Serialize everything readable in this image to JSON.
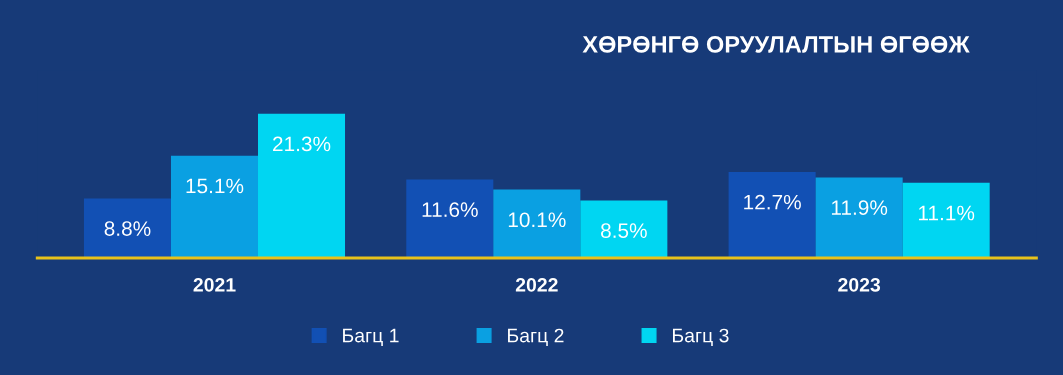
{
  "chart_data": {
    "type": "bar",
    "title": "ХӨРӨНГӨ ОРУУЛАЛТЫН ӨГӨӨЖ",
    "categories": [
      "2021",
      "2022",
      "2023"
    ],
    "series": [
      {
        "name": "Багц 1",
        "color": "#1250b4",
        "values": [
          8.8,
          11.6,
          12.7
        ],
        "value_labels": [
          "8.8%",
          "11.6%",
          "12.7%"
        ]
      },
      {
        "name": "Багц 2",
        "color": "#0aa0e2",
        "values": [
          15.1,
          10.1,
          11.9
        ],
        "value_labels": [
          "15.1%",
          "10.1%",
          "11.9%"
        ]
      },
      {
        "name": "Багц 3",
        "color": "#00d6f2",
        "values": [
          21.3,
          8.5,
          11.1
        ],
        "value_labels": [
          "21.3%",
          "8.5%",
          "11.1%"
        ]
      }
    ],
    "tick_labels": "x",
    "grid": false,
    "legend": "bottom"
  }
}
